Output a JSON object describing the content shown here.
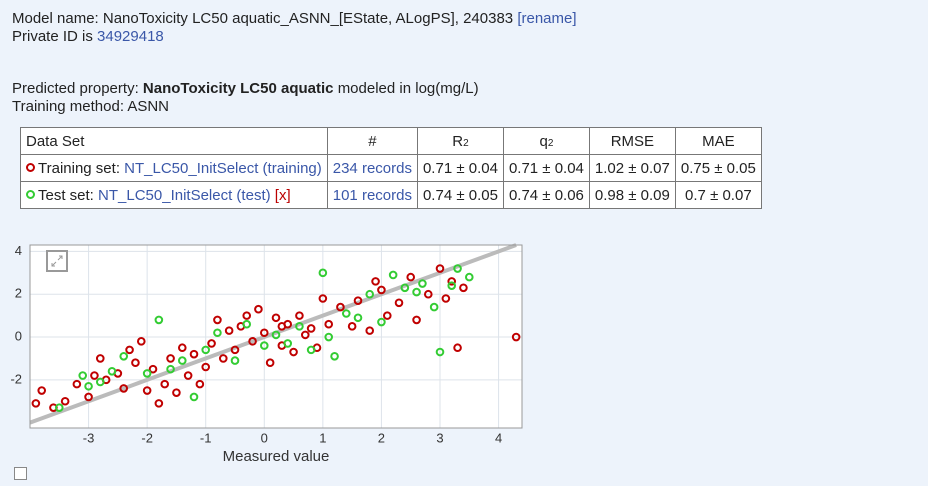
{
  "header": {
    "model_label": "Model name: NanoToxicity LC50 aquatic_ASNN_[EState, ALogPS], 240383",
    "rename": "[rename]",
    "private_label": "Private ID is",
    "private_id": "34929418",
    "property_label": "Predicted property:",
    "property": "NanoToxicity LC50 aquatic",
    "property_unit": "modeled in log(mg/L)",
    "method": "Training method: ASNN"
  },
  "table": {
    "headers": [
      {
        "text": "Data Set"
      },
      {
        "text": "#"
      },
      {
        "text": "R",
        "sub": "2"
      },
      {
        "text": "q",
        "sub": "2"
      },
      {
        "text": "RMSE"
      },
      {
        "text": "MAE"
      }
    ],
    "rows": [
      {
        "label": "Training set:",
        "link": "NT_LC50_InitSelect (training)",
        "records": "234 records",
        "stats": [
          "0.71 ± 0.04",
          "0.71 ± 0.04",
          "1.02 ± 0.07",
          "0.75 ± 0.05"
        ]
      },
      {
        "label": "Test set:",
        "link": "NT_LC50_InitSelect (test)",
        "remove": "[x]",
        "records": "101 records",
        "stats": [
          "0.74 ± 0.05",
          "0.74 ± 0.06",
          "0.98 ± 0.09",
          "0.7 ± 0.07"
        ]
      }
    ]
  },
  "chart_data": {
    "type": "scatter",
    "xlabel": "Measured value",
    "xlim": [
      -4,
      4.4
    ],
    "ylim": [
      -4.25,
      4.3
    ],
    "xticks": [
      -3,
      -2,
      -1,
      0,
      1,
      2,
      3,
      4
    ],
    "yticks": [
      -2,
      0,
      2,
      4
    ],
    "grid": true,
    "series": [
      {
        "color": "#c00000",
        "x": [
          -3.9,
          -3.8,
          -3.6,
          -3.4,
          -3.2,
          -3.0,
          -2.9,
          -2.7,
          -2.5,
          -2.4,
          -2.3,
          -2.2,
          -2.1,
          -2.0,
          -1.9,
          -1.8,
          -1.7,
          -1.6,
          -1.5,
          -1.4,
          -1.3,
          -1.2,
          -1.1,
          -1.0,
          -0.9,
          -0.8,
          -0.7,
          -0.6,
          -0.5,
          -0.4,
          -0.3,
          -0.2,
          -0.1,
          0.0,
          0.1,
          0.2,
          0.3,
          0.4,
          0.5,
          0.6,
          0.7,
          0.8,
          0.9,
          1.0,
          1.1,
          1.3,
          1.5,
          1.6,
          1.8,
          2.0,
          2.1,
          2.3,
          2.5,
          2.6,
          2.8,
          3.0,
          3.1,
          3.2,
          3.3,
          3.4,
          4.3,
          -2.8,
          0.3,
          1.9
        ],
        "values": [
          -3.1,
          -2.5,
          -3.3,
          -3.0,
          -2.2,
          -2.8,
          -1.8,
          -2.0,
          -1.7,
          -2.4,
          -0.6,
          -1.2,
          -0.2,
          -2.5,
          -1.5,
          -3.1,
          -2.2,
          -1.0,
          -2.6,
          -0.5,
          -1.8,
          -0.8,
          -2.2,
          -1.4,
          -0.3,
          0.8,
          -1.0,
          0.3,
          -0.6,
          0.5,
          1.0,
          -0.2,
          1.3,
          0.2,
          -1.2,
          0.9,
          -0.4,
          0.6,
          -0.7,
          1.0,
          0.1,
          0.4,
          -0.5,
          1.8,
          0.6,
          1.4,
          0.5,
          1.7,
          0.3,
          2.2,
          1.0,
          1.6,
          2.8,
          0.8,
          2.0,
          3.2,
          1.8,
          2.6,
          -0.5,
          2.3,
          0.0,
          -1.0,
          0.5,
          2.6
        ]
      },
      {
        "color": "#33cc33",
        "x": [
          -3.5,
          -3.1,
          -3.0,
          -2.8,
          -2.6,
          -2.4,
          -2.0,
          -1.8,
          -1.6,
          -1.4,
          -1.2,
          -1.0,
          -0.8,
          -0.5,
          -0.3,
          0.0,
          0.2,
          0.4,
          0.6,
          0.8,
          1.0,
          1.1,
          1.2,
          1.4,
          1.6,
          1.8,
          2.0,
          2.2,
          2.4,
          2.6,
          2.9,
          3.0,
          3.2,
          3.3,
          3.5,
          2.7
        ],
        "values": [
          -3.3,
          -1.8,
          -2.3,
          -2.1,
          -1.6,
          -0.9,
          -1.7,
          0.8,
          -1.5,
          -1.1,
          -2.8,
          -0.6,
          0.2,
          -1.1,
          0.6,
          -0.4,
          0.1,
          -0.3,
          0.5,
          -0.6,
          3.0,
          0.0,
          -0.9,
          1.1,
          0.9,
          2.0,
          0.7,
          2.9,
          2.3,
          2.1,
          1.4,
          -0.7,
          2.4,
          3.2,
          2.8,
          2.5
        ]
      }
    ]
  }
}
